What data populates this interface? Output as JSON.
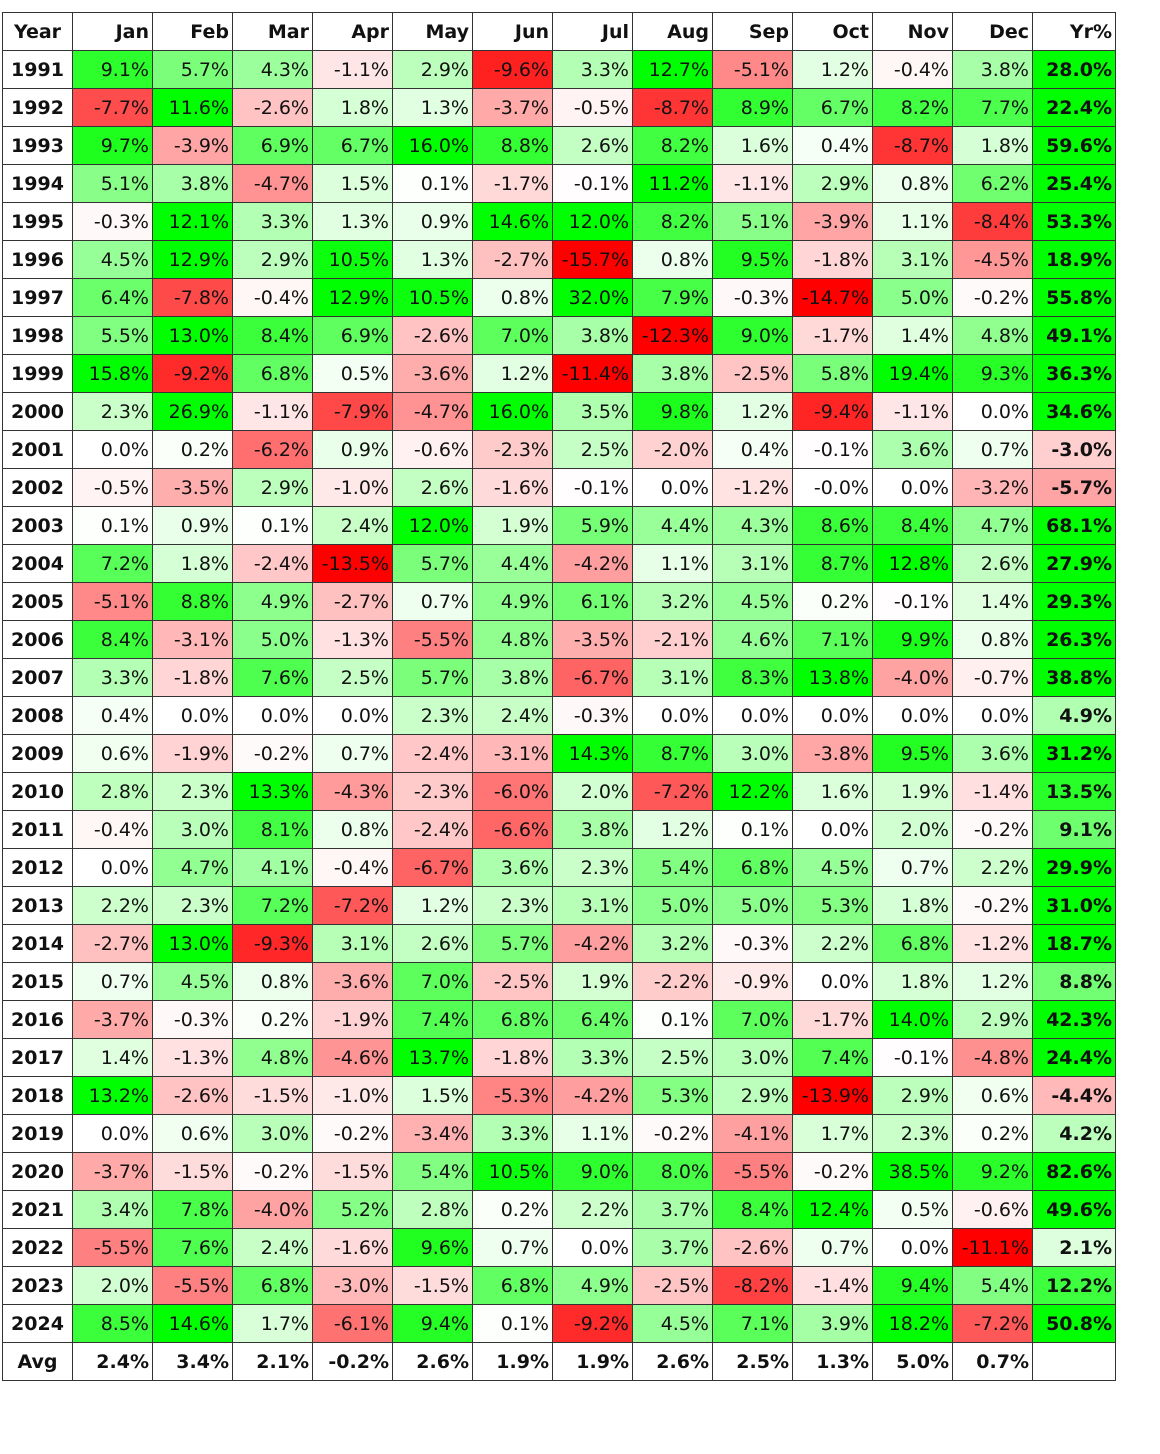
{
  "chart_data": {
    "type": "heatmap",
    "headers": [
      "Year",
      "Jan",
      "Feb",
      "Mar",
      "Apr",
      "May",
      "Jun",
      "Jul",
      "Aug",
      "Sep",
      "Oct",
      "Nov",
      "Dec",
      "Yr%"
    ],
    "rows": [
      [
        "1991",
        "9.1%",
        "5.7%",
        "4.3%",
        "-1.1%",
        "2.9%",
        "-9.6%",
        "3.3%",
        "12.7%",
        "-5.1%",
        "1.2%",
        "-0.4%",
        "3.8%",
        "28.0%"
      ],
      [
        "1992",
        "-7.7%",
        "11.6%",
        "-2.6%",
        "1.8%",
        "1.3%",
        "-3.7%",
        "-0.5%",
        "-8.7%",
        "8.9%",
        "6.7%",
        "8.2%",
        "7.7%",
        "22.4%"
      ],
      [
        "1993",
        "9.7%",
        "-3.9%",
        "6.9%",
        "6.7%",
        "16.0%",
        "8.8%",
        "2.6%",
        "8.2%",
        "1.6%",
        "0.4%",
        "-8.7%",
        "1.8%",
        "59.6%"
      ],
      [
        "1994",
        "5.1%",
        "3.8%",
        "-4.7%",
        "1.5%",
        "0.1%",
        "-1.7%",
        "-0.1%",
        "11.2%",
        "-1.1%",
        "2.9%",
        "0.8%",
        "6.2%",
        "25.4%"
      ],
      [
        "1995",
        "-0.3%",
        "12.1%",
        "3.3%",
        "1.3%",
        "0.9%",
        "14.6%",
        "12.0%",
        "8.2%",
        "5.1%",
        "-3.9%",
        "1.1%",
        "-8.4%",
        "53.3%"
      ],
      [
        "1996",
        "4.5%",
        "12.9%",
        "2.9%",
        "10.5%",
        "1.3%",
        "-2.7%",
        "-15.7%",
        "0.8%",
        "9.5%",
        "-1.8%",
        "3.1%",
        "-4.5%",
        "18.9%"
      ],
      [
        "1997",
        "6.4%",
        "-7.8%",
        "-0.4%",
        "12.9%",
        "10.5%",
        "0.8%",
        "32.0%",
        "7.9%",
        "-0.3%",
        "-14.7%",
        "5.0%",
        "-0.2%",
        "55.8%"
      ],
      [
        "1998",
        "5.5%",
        "13.0%",
        "8.4%",
        "6.9%",
        "-2.6%",
        "7.0%",
        "3.8%",
        "-12.3%",
        "9.0%",
        "-1.7%",
        "1.4%",
        "4.8%",
        "49.1%"
      ],
      [
        "1999",
        "15.8%",
        "-9.2%",
        "6.8%",
        "0.5%",
        "-3.6%",
        "1.2%",
        "-11.4%",
        "3.8%",
        "-2.5%",
        "5.8%",
        "19.4%",
        "9.3%",
        "36.3%"
      ],
      [
        "2000",
        "2.3%",
        "26.9%",
        "-1.1%",
        "-7.9%",
        "-4.7%",
        "16.0%",
        "3.5%",
        "9.8%",
        "1.2%",
        "-9.4%",
        "-1.1%",
        "0.0%",
        "34.6%"
      ],
      [
        "2001",
        "0.0%",
        "0.2%",
        "-6.2%",
        "0.9%",
        "-0.6%",
        "-2.3%",
        "2.5%",
        "-2.0%",
        "0.4%",
        "-0.1%",
        "3.6%",
        "0.7%",
        "-3.0%"
      ],
      [
        "2002",
        "-0.5%",
        "-3.5%",
        "2.9%",
        "-1.0%",
        "2.6%",
        "-1.6%",
        "-0.1%",
        "0.0%",
        "-1.2%",
        "-0.0%",
        "0.0%",
        "-3.2%",
        "-5.7%"
      ],
      [
        "2003",
        "0.1%",
        "0.9%",
        "0.1%",
        "2.4%",
        "12.0%",
        "1.9%",
        "5.9%",
        "4.4%",
        "4.3%",
        "8.6%",
        "8.4%",
        "4.7%",
        "68.1%"
      ],
      [
        "2004",
        "7.2%",
        "1.8%",
        "-2.4%",
        "-13.5%",
        "5.7%",
        "4.4%",
        "-4.2%",
        "1.1%",
        "3.1%",
        "8.7%",
        "12.8%",
        "2.6%",
        "27.9%"
      ],
      [
        "2005",
        "-5.1%",
        "8.8%",
        "4.9%",
        "-2.7%",
        "0.7%",
        "4.9%",
        "6.1%",
        "3.2%",
        "4.5%",
        "0.2%",
        "-0.1%",
        "1.4%",
        "29.3%"
      ],
      [
        "2006",
        "8.4%",
        "-3.1%",
        "5.0%",
        "-1.3%",
        "-5.5%",
        "4.8%",
        "-3.5%",
        "-2.1%",
        "4.6%",
        "7.1%",
        "9.9%",
        "0.8%",
        "26.3%"
      ],
      [
        "2007",
        "3.3%",
        "-1.8%",
        "7.6%",
        "2.5%",
        "5.7%",
        "3.8%",
        "-6.7%",
        "3.1%",
        "8.3%",
        "13.8%",
        "-4.0%",
        "-0.7%",
        "38.8%"
      ],
      [
        "2008",
        "0.4%",
        "0.0%",
        "0.0%",
        "0.0%",
        "2.3%",
        "2.4%",
        "-0.3%",
        "0.0%",
        "0.0%",
        "0.0%",
        "0.0%",
        "0.0%",
        "4.9%"
      ],
      [
        "2009",
        "0.6%",
        "-1.9%",
        "-0.2%",
        "0.7%",
        "-2.4%",
        "-3.1%",
        "14.3%",
        "8.7%",
        "3.0%",
        "-3.8%",
        "9.5%",
        "3.6%",
        "31.2%"
      ],
      [
        "2010",
        "2.8%",
        "2.3%",
        "13.3%",
        "-4.3%",
        "-2.3%",
        "-6.0%",
        "2.0%",
        "-7.2%",
        "12.2%",
        "1.6%",
        "1.9%",
        "-1.4%",
        "13.5%"
      ],
      [
        "2011",
        "-0.4%",
        "3.0%",
        "8.1%",
        "0.8%",
        "-2.4%",
        "-6.6%",
        "3.8%",
        "1.2%",
        "0.1%",
        "0.0%",
        "2.0%",
        "-0.2%",
        "9.1%"
      ],
      [
        "2012",
        "0.0%",
        "4.7%",
        "4.1%",
        "-0.4%",
        "-6.7%",
        "3.6%",
        "2.3%",
        "5.4%",
        "6.8%",
        "4.5%",
        "0.7%",
        "2.2%",
        "29.9%"
      ],
      [
        "2013",
        "2.2%",
        "2.3%",
        "7.2%",
        "-7.2%",
        "1.2%",
        "2.3%",
        "3.1%",
        "5.0%",
        "5.0%",
        "5.3%",
        "1.8%",
        "-0.2%",
        "31.0%"
      ],
      [
        "2014",
        "-2.7%",
        "13.0%",
        "-9.3%",
        "3.1%",
        "2.6%",
        "5.7%",
        "-4.2%",
        "3.2%",
        "-0.3%",
        "2.2%",
        "6.8%",
        "-1.2%",
        "18.7%"
      ],
      [
        "2015",
        "0.7%",
        "4.5%",
        "0.8%",
        "-3.6%",
        "7.0%",
        "-2.5%",
        "1.9%",
        "-2.2%",
        "-0.9%",
        "0.0%",
        "1.8%",
        "1.2%",
        "8.8%"
      ],
      [
        "2016",
        "-3.7%",
        "-0.3%",
        "0.2%",
        "-1.9%",
        "7.4%",
        "6.8%",
        "6.4%",
        "0.1%",
        "7.0%",
        "-1.7%",
        "14.0%",
        "2.9%",
        "42.3%"
      ],
      [
        "2017",
        "1.4%",
        "-1.3%",
        "4.8%",
        "-4.6%",
        "13.7%",
        "-1.8%",
        "3.3%",
        "2.5%",
        "3.0%",
        "7.4%",
        "-0.1%",
        "-4.8%",
        "24.4%"
      ],
      [
        "2018",
        "13.2%",
        "-2.6%",
        "-1.5%",
        "-1.0%",
        "1.5%",
        "-5.3%",
        "-4.2%",
        "5.3%",
        "2.9%",
        "-13.9%",
        "2.9%",
        "0.6%",
        "-4.4%"
      ],
      [
        "2019",
        "0.0%",
        "0.6%",
        "3.0%",
        "-0.2%",
        "-3.4%",
        "3.3%",
        "1.1%",
        "-0.2%",
        "-4.1%",
        "1.7%",
        "2.3%",
        "0.2%",
        "4.2%"
      ],
      [
        "2020",
        "-3.7%",
        "-1.5%",
        "-0.2%",
        "-1.5%",
        "5.4%",
        "10.5%",
        "9.0%",
        "8.0%",
        "-5.5%",
        "-0.2%",
        "38.5%",
        "9.2%",
        "82.6%"
      ],
      [
        "2021",
        "3.4%",
        "7.8%",
        "-4.0%",
        "5.2%",
        "2.8%",
        "0.2%",
        "2.2%",
        "3.7%",
        "8.4%",
        "12.4%",
        "0.5%",
        "-0.6%",
        "49.6%"
      ],
      [
        "2022",
        "-5.5%",
        "7.6%",
        "2.4%",
        "-1.6%",
        "9.6%",
        "0.7%",
        "0.0%",
        "3.7%",
        "-2.6%",
        "0.7%",
        "0.0%",
        "-11.1%",
        "2.1%"
      ],
      [
        "2023",
        "2.0%",
        "-5.5%",
        "6.8%",
        "-3.0%",
        "-1.5%",
        "6.8%",
        "4.9%",
        "-2.5%",
        "-8.2%",
        "-1.4%",
        "9.4%",
        "5.4%",
        "12.2%"
      ],
      [
        "2024",
        "8.5%",
        "14.6%",
        "1.7%",
        "-6.1%",
        "9.4%",
        "0.1%",
        "-9.2%",
        "4.5%",
        "7.1%",
        "3.9%",
        "18.2%",
        "-7.2%",
        "50.8%"
      ]
    ],
    "avg_row": [
      "Avg",
      "2.4%",
      "3.4%",
      "2.1%",
      "-0.2%",
      "2.6%",
      "1.9%",
      "1.9%",
      "2.6%",
      "2.5%",
      "1.3%",
      "5.0%",
      "0.7%",
      ""
    ],
    "colors": {
      "positive": "#00ff00",
      "negative": "#ff0000",
      "neutral": "#ffffff"
    }
  }
}
